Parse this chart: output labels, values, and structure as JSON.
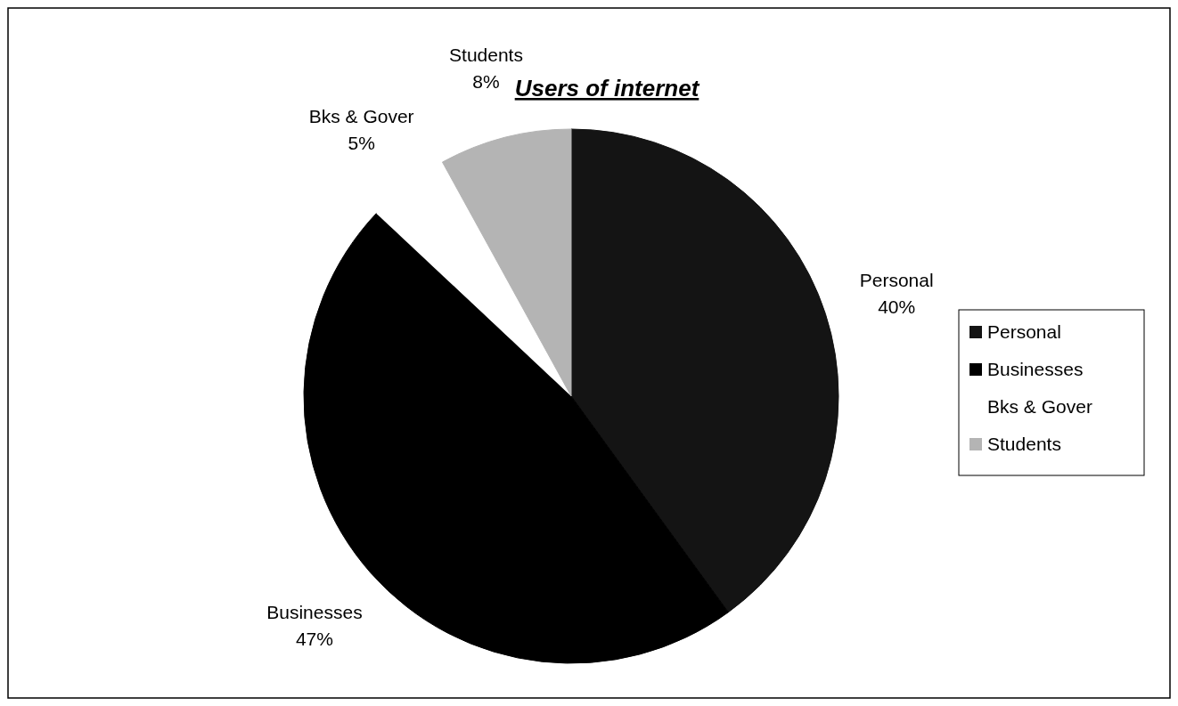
{
  "chart_data": {
    "type": "pie",
    "title": "Users of internet",
    "categories": [
      "Personal",
      "Businesses",
      "Bks & Gover",
      "Students"
    ],
    "values": [
      40,
      47,
      5,
      8
    ],
    "value_labels": [
      "40%",
      "47%",
      "5%",
      "8%"
    ],
    "colors": [
      "#141414",
      "#000000",
      "#ffffff",
      "#b4b4b4"
    ],
    "legend": "right"
  }
}
